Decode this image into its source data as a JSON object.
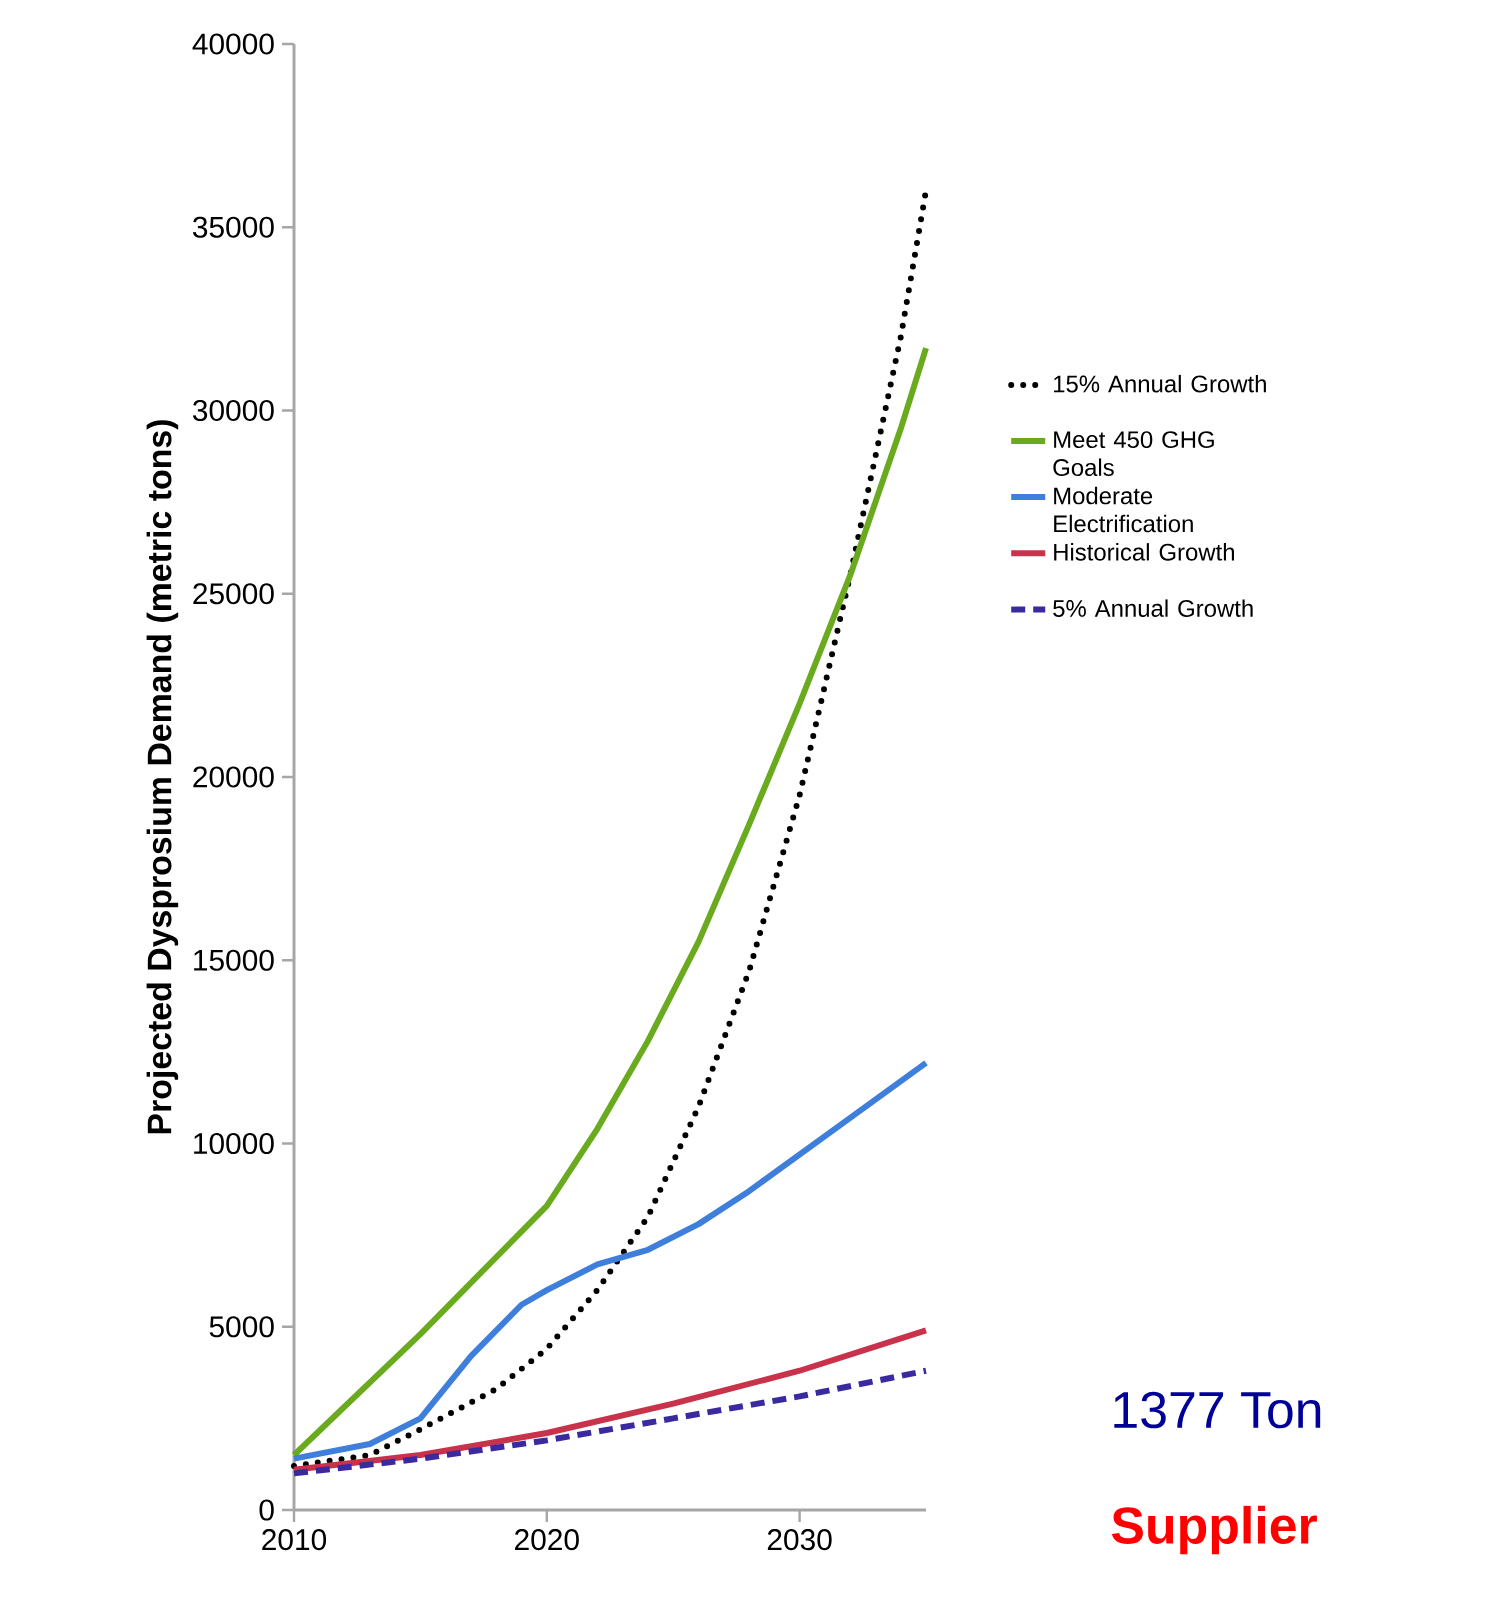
{
  "chart_data": {
    "type": "line",
    "ylabel": "Projected Dysprosium Demand (metric tons)",
    "xlim": [
      2010,
      2035
    ],
    "xticks": [
      2010,
      2020,
      2030
    ],
    "ylim": [
      0,
      40000
    ],
    "yticks": [
      0,
      5000,
      10000,
      15000,
      20000,
      25000,
      30000,
      35000,
      40000
    ],
    "legend": "right",
    "grid": false,
    "series": [
      {
        "name": "15% Annual Growth",
        "color": "#000000",
        "line_style": "dotted",
        "x": [
          2010,
          2013,
          2015,
          2018,
          2020,
          2022,
          2024,
          2026,
          2028,
          2030,
          2032,
          2034,
          2035
        ],
        "values": [
          1200,
          1500,
          2200,
          3300,
          4400,
          6000,
          8000,
          11000,
          14700,
          19500,
          25500,
          32000,
          36000
        ]
      },
      {
        "name": "Meet 450 GHG Goals",
        "color": "#6aaa1e",
        "line_style": "solid",
        "x": [
          2010,
          2015,
          2020,
          2022,
          2024,
          2026,
          2028,
          2030,
          2032,
          2034,
          2035
        ],
        "values": [
          1500,
          4800,
          8300,
          10400,
          12800,
          15500,
          18700,
          22000,
          25500,
          29500,
          31700
        ]
      },
      {
        "name": "Moderate Electrification",
        "color": "#3f7fdc",
        "line_style": "solid",
        "x": [
          2010,
          2013,
          2015,
          2017,
          2019,
          2020,
          2022,
          2024,
          2026,
          2028,
          2030,
          2032,
          2035
        ],
        "values": [
          1400,
          1800,
          2500,
          4200,
          5600,
          6000,
          6700,
          7100,
          7800,
          8700,
          9700,
          10700,
          12200
        ]
      },
      {
        "name": "Historical Growth",
        "color": "#c8324a",
        "line_style": "solid",
        "x": [
          2010,
          2015,
          2020,
          2025,
          2030,
          2035
        ],
        "values": [
          1100,
          1500,
          2100,
          2900,
          3800,
          4900
        ]
      },
      {
        "name": "5% Annual Growth",
        "color": "#3a2aa0",
        "line_style": "dashed",
        "x": [
          2010,
          2015,
          2020,
          2025,
          2030,
          2035
        ],
        "values": [
          1000,
          1400,
          1900,
          2500,
          3100,
          3800
        ]
      }
    ],
    "annotations": [
      "1377 Ton",
      "Supplier"
    ]
  }
}
